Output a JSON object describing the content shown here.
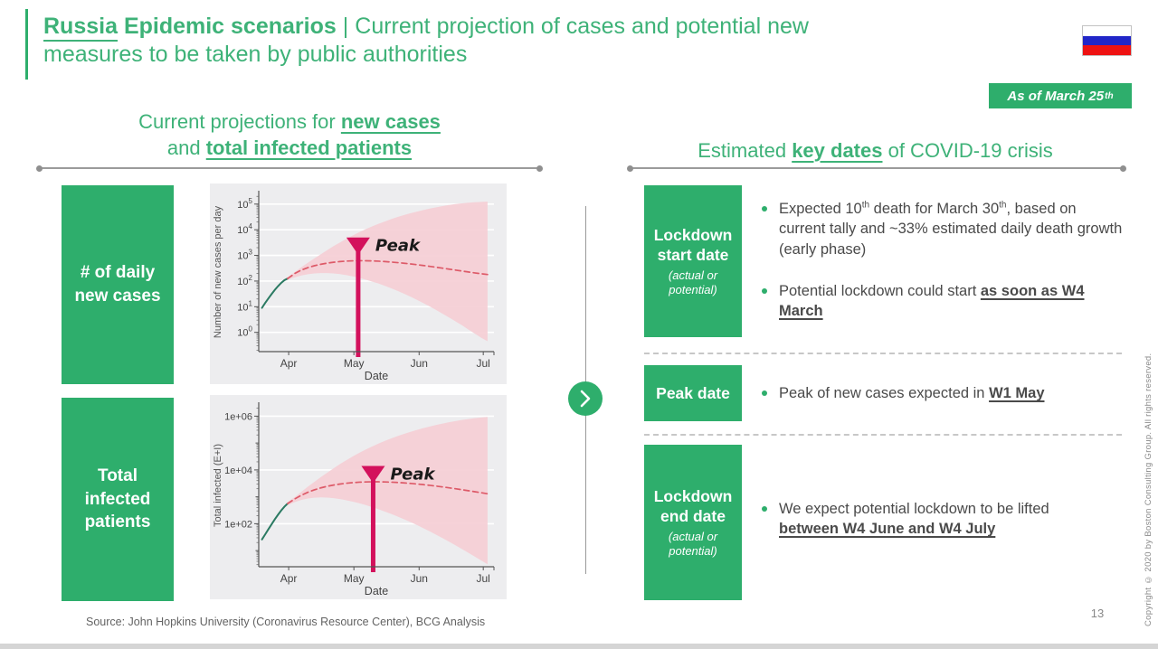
{
  "slide": {
    "title": {
      "underlined": "Russia",
      "bold": "Epidemic scenarios",
      "divider": "|",
      "regular_line1": "Current projection of cases and potential new",
      "regular_line2": "measures to be taken by public authorities"
    },
    "badge": [
      {
        "t": "As of March 25",
        "s": "n"
      },
      {
        "t": "th",
        "s": "sup"
      }
    ],
    "flag_colors": [
      "#FFFFFF",
      "#2126C8",
      "#EE1212"
    ],
    "left_header": {
      "line1_prefix": "Current projections for ",
      "line1_em": "new cases",
      "line2_prefix": "and ",
      "line2_em": "total infected patients"
    },
    "right_header": {
      "prefix": "Estimated ",
      "em": "key dates",
      "suffix": " of COVID-19 crisis"
    },
    "row_labels": [
      "# of daily new cases",
      "Total infected patients"
    ],
    "key_dates": [
      {
        "box_title": "Lockdown start date",
        "box_sub": "(actual or potential)",
        "bullets": [
          [
            {
              "t": "Expected 10",
              "s": "n"
            },
            {
              "t": "th",
              "s": "sup"
            },
            {
              "t": " death for March 30",
              "s": "n"
            },
            {
              "t": "th",
              "s": "sup"
            },
            {
              "t": ", based on current tally and ~33% estimated daily death growth (early phase)",
              "s": "n"
            }
          ],
          [
            {
              "t": "Potential lockdown could start ",
              "s": "n"
            },
            {
              "t": "as soon as W4 March",
              "s": "bu"
            }
          ]
        ]
      },
      {
        "box_title": "Peak date",
        "box_sub": "",
        "bullets": [
          [
            {
              "t": "Peak of new cases expected in ",
              "s": "n"
            },
            {
              "t": "W1 May",
              "s": "bu"
            }
          ]
        ]
      },
      {
        "box_title": "Lockdown end date",
        "box_sub": "(actual or potential)",
        "bullets": [
          [
            {
              "t": "We expect potential lockdown to be lifted ",
              "s": "n"
            },
            {
              "t": "between W4 June and W4 July",
              "s": "bu"
            }
          ]
        ]
      }
    ],
    "footer": {
      "source": "Source: John Hopkins University (Coronavirus Resource Center), BCG Analysis",
      "page": "13",
      "copyright": "Copyright © 2020 by Boston Consulting Group. All rights reserved."
    }
  },
  "chart_data": [
    {
      "type": "line",
      "bg": "#EDEDEF",
      "xlabel": "Date",
      "ylabel": "Number of new cases per day",
      "yscale": "log",
      "ylog": [
        -0.75,
        5.45
      ],
      "grid_exp": [
        0,
        1,
        2,
        3,
        4,
        5
      ],
      "label_exp": [
        0,
        1,
        2,
        3,
        4,
        5
      ],
      "ytick_style": "pow10",
      "xlim": [
        0,
        110
      ],
      "xticks": [
        {
          "x": 14,
          "label": "Apr"
        },
        {
          "x": 44.5,
          "label": "May"
        },
        {
          "x": 75,
          "label": "Jun"
        },
        {
          "x": 105,
          "label": "Jul"
        }
      ],
      "series": [
        {
          "name": "observed-cases",
          "style": "solid",
          "color": "#2B7A62",
          "width": 2,
          "points": [
            [
              1.5,
              9
            ],
            [
              3,
              14
            ],
            [
              4.5,
              21
            ],
            [
              6,
              31
            ],
            [
              7.5,
              45
            ],
            [
              9,
              63
            ],
            [
              10.5,
              85
            ],
            [
              12,
              108
            ],
            [
              13.5,
              125
            ]
          ]
        },
        {
          "name": "projected-median",
          "style": "dashed",
          "color": "#DD5A68",
          "width": 1.7,
          "points": [
            [
              13.5,
              125
            ],
            [
              17,
              200
            ],
            [
              20,
              270
            ],
            [
              23,
              335
            ],
            [
              26,
              395
            ],
            [
              29,
              450
            ],
            [
              32,
              500
            ],
            [
              35,
              540
            ],
            [
              38,
              575
            ],
            [
              41,
              600
            ],
            [
              44,
              615
            ],
            [
              47,
              620
            ],
            [
              50,
              618
            ],
            [
              53,
              610
            ],
            [
              56,
              595
            ],
            [
              59,
              575
            ],
            [
              62,
              550
            ],
            [
              65,
              523
            ],
            [
              68,
              494
            ],
            [
              71,
              464
            ],
            [
              74,
              434
            ],
            [
              77,
              404
            ],
            [
              80,
              374
            ],
            [
              83,
              345
            ],
            [
              86,
              318
            ],
            [
              89,
              292
            ],
            [
              92,
              268
            ],
            [
              95,
              246
            ],
            [
              98,
              226
            ],
            [
              101,
              208
            ],
            [
              104,
              193
            ],
            [
              107,
              180
            ]
          ]
        }
      ],
      "band": {
        "name": "confidence-band",
        "color": "#F5CDD4",
        "upper": [
          [
            13.5,
            140
          ],
          [
            17,
            230
          ],
          [
            20,
            350
          ],
          [
            23,
            520
          ],
          [
            26,
            760
          ],
          [
            29,
            1100
          ],
          [
            32,
            1600
          ],
          [
            35,
            2300
          ],
          [
            38,
            3200
          ],
          [
            41,
            4400
          ],
          [
            44,
            6000
          ],
          [
            47,
            8000
          ],
          [
            50,
            10500
          ],
          [
            53,
            13500
          ],
          [
            56,
            17000
          ],
          [
            59,
            21000
          ],
          [
            62,
            26000
          ],
          [
            65,
            31500
          ],
          [
            68,
            37500
          ],
          [
            71,
            44000
          ],
          [
            74,
            51000
          ],
          [
            77,
            58500
          ],
          [
            80,
            66500
          ],
          [
            83,
            75000
          ],
          [
            86,
            83500
          ],
          [
            89,
            92000
          ],
          [
            92,
            100000
          ],
          [
            95,
            107000
          ],
          [
            98,
            113000
          ],
          [
            101,
            118000
          ],
          [
            104,
            122000
          ],
          [
            107,
            125000
          ]
        ],
        "lower": [
          [
            13.5,
            112
          ],
          [
            17,
            140
          ],
          [
            20,
            165
          ],
          [
            23,
            185
          ],
          [
            26,
            198
          ],
          [
            29,
            205
          ],
          [
            32,
            205
          ],
          [
            35,
            198
          ],
          [
            38,
            186
          ],
          [
            41,
            170
          ],
          [
            44,
            152
          ],
          [
            47,
            133
          ],
          [
            50,
            114
          ],
          [
            53,
            96
          ],
          [
            56,
            80
          ],
          [
            59,
            65
          ],
          [
            62,
            52
          ],
          [
            65,
            41
          ],
          [
            68,
            32
          ],
          [
            71,
            24.5
          ],
          [
            74,
            18.5
          ],
          [
            77,
            13.8
          ],
          [
            80,
            10.2
          ],
          [
            83,
            7.4
          ],
          [
            86,
            5.3
          ],
          [
            89,
            3.8
          ],
          [
            92,
            2.7
          ],
          [
            95,
            1.9
          ],
          [
            98,
            1.3
          ],
          [
            101,
            0.9
          ],
          [
            104,
            0.62
          ],
          [
            107,
            0.45
          ]
        ]
      },
      "peak_marker": {
        "x": 46.5,
        "y_top": 5000,
        "label": "Peak",
        "color": "#D3115C"
      }
    },
    {
      "type": "line",
      "bg": "#EDEDEF",
      "xlabel": "Date",
      "ylabel": "Total infected (E+I)",
      "yscale": "log",
      "ylog": [
        0.4,
        6.45
      ],
      "grid_exp": [
        2,
        4,
        6
      ],
      "label_exp": [
        2,
        4,
        6
      ],
      "ytick_style": "1e",
      "xlim": [
        0,
        110
      ],
      "xticks": [
        {
          "x": 14,
          "label": "Apr"
        },
        {
          "x": 44.5,
          "label": "May"
        },
        {
          "x": 75,
          "label": "Jun"
        },
        {
          "x": 105,
          "label": "Jul"
        }
      ],
      "series": [
        {
          "name": "observed-total-infected",
          "style": "solid",
          "color": "#2B7A62",
          "width": 2,
          "points": [
            [
              1.5,
              26
            ],
            [
              3,
              40
            ],
            [
              4.5,
              62
            ],
            [
              6,
              95
            ],
            [
              7.5,
              145
            ],
            [
              9,
              215
            ],
            [
              10.5,
              310
            ],
            [
              12,
              430
            ],
            [
              13.5,
              560
            ]
          ]
        },
        {
          "name": "projected-median",
          "style": "dashed",
          "color": "#DD5A68",
          "width": 1.7,
          "points": [
            [
              13.5,
              560
            ],
            [
              17,
              850
            ],
            [
              20,
              1150
            ],
            [
              23,
              1480
            ],
            [
              26,
              1820
            ],
            [
              29,
              2150
            ],
            [
              32,
              2460
            ],
            [
              35,
              2740
            ],
            [
              38,
              2990
            ],
            [
              41,
              3200
            ],
            [
              44,
              3370
            ],
            [
              47,
              3500
            ],
            [
              50,
              3580
            ],
            [
              53,
              3620
            ],
            [
              56,
              3620
            ],
            [
              59,
              3580
            ],
            [
              62,
              3510
            ],
            [
              65,
              3410
            ],
            [
              68,
              3290
            ],
            [
              71,
              3150
            ],
            [
              74,
              3000
            ],
            [
              77,
              2840
            ],
            [
              80,
              2670
            ],
            [
              83,
              2500
            ],
            [
              86,
              2330
            ],
            [
              89,
              2160
            ],
            [
              92,
              2000
            ],
            [
              95,
              1840
            ],
            [
              98,
              1690
            ],
            [
              101,
              1550
            ],
            [
              104,
              1420
            ],
            [
              107,
              1300
            ]
          ]
        }
      ],
      "band": {
        "name": "confidence-band",
        "color": "#F5CDD4",
        "upper": [
          [
            13.5,
            640
          ],
          [
            17,
            1000
          ],
          [
            20,
            1550
          ],
          [
            23,
            2400
          ],
          [
            26,
            3600
          ],
          [
            29,
            5400
          ],
          [
            32,
            7900
          ],
          [
            35,
            11500
          ],
          [
            38,
            16500
          ],
          [
            41,
            23000
          ],
          [
            44,
            32000
          ],
          [
            47,
            43000
          ],
          [
            50,
            57000
          ],
          [
            53,
            74000
          ],
          [
            56,
            95000
          ],
          [
            59,
            120000
          ],
          [
            62,
            149000
          ],
          [
            65,
            182000
          ],
          [
            68,
            220000
          ],
          [
            71,
            262000
          ],
          [
            74,
            308000
          ],
          [
            77,
            358000
          ],
          [
            80,
            412000
          ],
          [
            83,
            470000
          ],
          [
            86,
            530000
          ],
          [
            89,
            592000
          ],
          [
            92,
            655000
          ],
          [
            95,
            718000
          ],
          [
            98,
            780000
          ],
          [
            101,
            840000
          ],
          [
            104,
            895000
          ],
          [
            107,
            940000
          ]
        ],
        "lower": [
          [
            13.5,
            490
          ],
          [
            17,
            640
          ],
          [
            20,
            770
          ],
          [
            23,
            870
          ],
          [
            26,
            930
          ],
          [
            29,
            950
          ],
          [
            32,
            935
          ],
          [
            35,
            890
          ],
          [
            38,
            825
          ],
          [
            41,
            745
          ],
          [
            44,
            660
          ],
          [
            47,
            575
          ],
          [
            50,
            492
          ],
          [
            53,
            415
          ],
          [
            56,
            345
          ],
          [
            59,
            283
          ],
          [
            62,
            230
          ],
          [
            65,
            184
          ],
          [
            68,
            146
          ],
          [
            71,
            115
          ],
          [
            74,
            89
          ],
          [
            77,
            68
          ],
          [
            80,
            52
          ],
          [
            83,
            39
          ],
          [
            86,
            29
          ],
          [
            89,
            21.5
          ],
          [
            92,
            15.8
          ],
          [
            95,
            11.5
          ],
          [
            98,
            8.3
          ],
          [
            101,
            6
          ],
          [
            104,
            4.3
          ],
          [
            107,
            3.1
          ]
        ]
      },
      "peak_marker": {
        "x": 53.5,
        "y_top": 14000,
        "label": "Peak",
        "color": "#D3115C"
      }
    }
  ]
}
